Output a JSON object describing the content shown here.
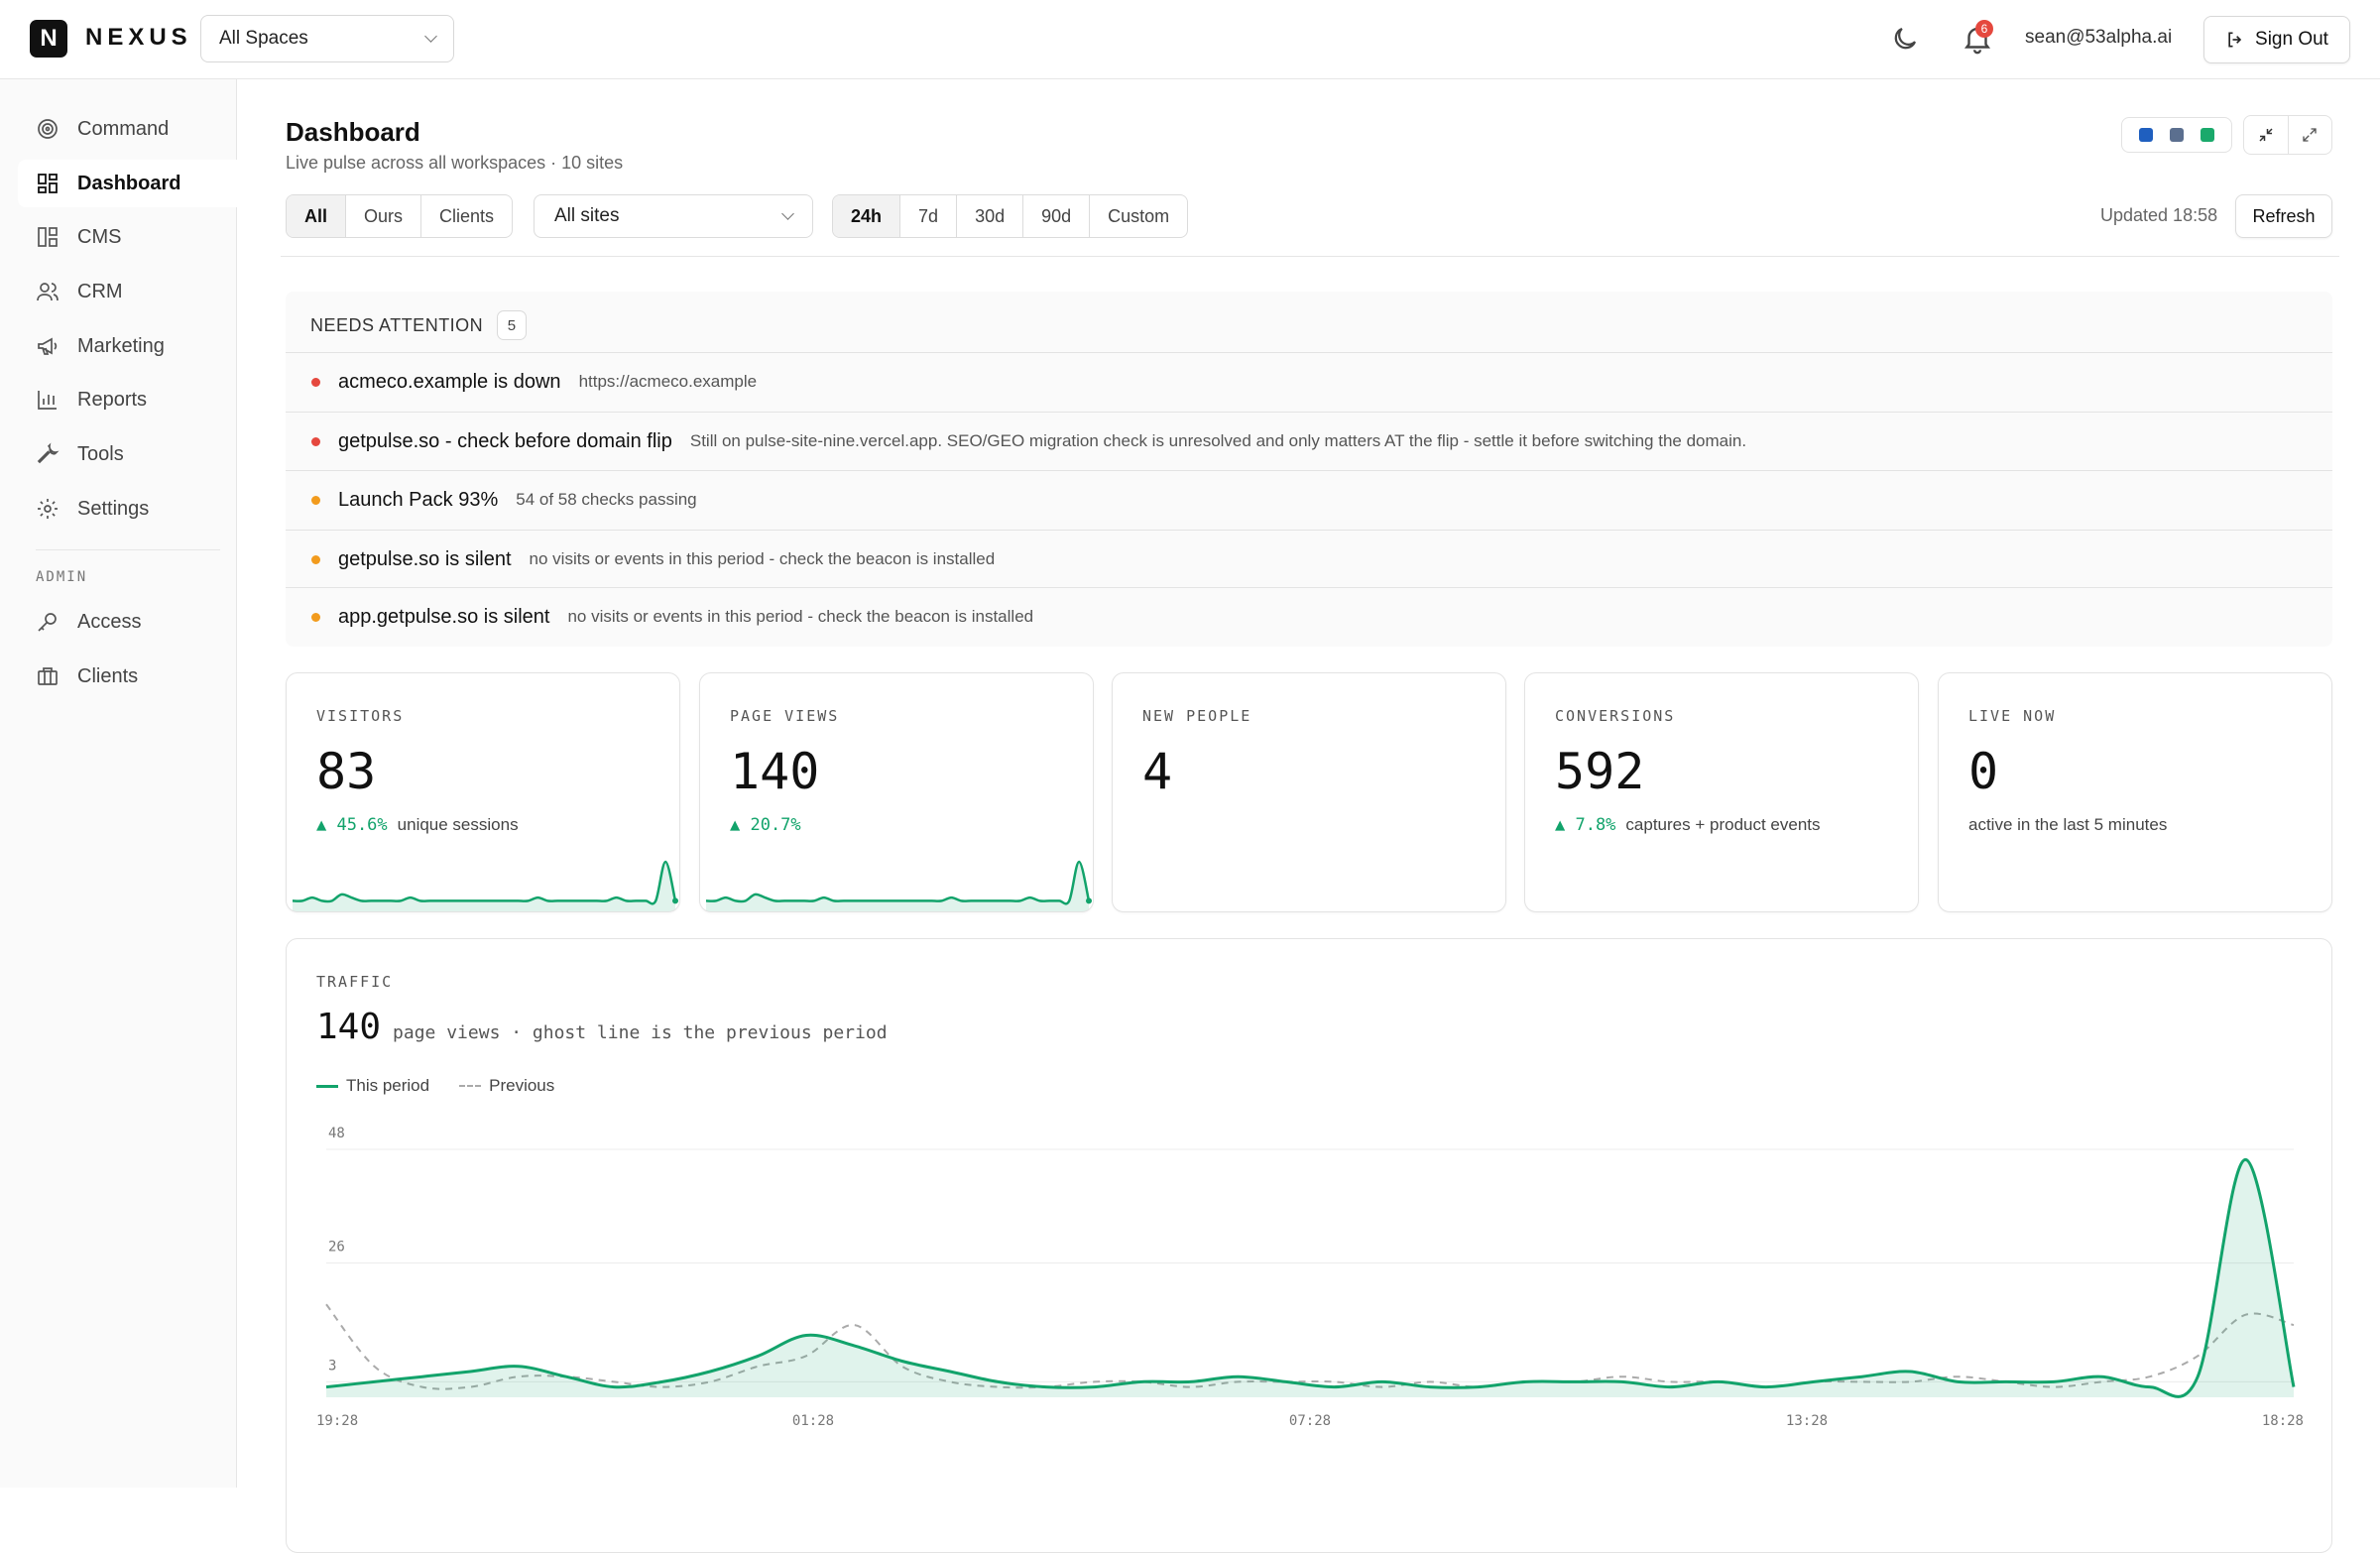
{
  "app": {
    "logo_letter": "N",
    "name": "NEXUS"
  },
  "header": {
    "space_select": "All Spaces",
    "notifications_count": "6",
    "user_email": "sean@53alpha.ai",
    "sign_out": "Sign Out"
  },
  "sidebar": {
    "items": [
      {
        "label": "Command",
        "icon": "target-icon"
      },
      {
        "label": "Dashboard",
        "icon": "grid-icon",
        "active": true
      },
      {
        "label": "CMS",
        "icon": "layout-icon"
      },
      {
        "label": "CRM",
        "icon": "users-icon"
      },
      {
        "label": "Marketing",
        "icon": "megaphone-icon"
      },
      {
        "label": "Reports",
        "icon": "bar-chart-icon"
      },
      {
        "label": "Tools",
        "icon": "wrench-icon"
      },
      {
        "label": "Settings",
        "icon": "gear-icon"
      }
    ],
    "admin_label": "ADMIN",
    "admin_items": [
      {
        "label": "Access",
        "icon": "key-icon"
      },
      {
        "label": "Clients",
        "icon": "briefcase-icon"
      }
    ]
  },
  "page": {
    "title": "Dashboard",
    "subtitle": "Live pulse across all workspaces · 10 sites",
    "swatch_colors": [
      "#1f5fbf",
      "#5b6f8f",
      "#1aa96b"
    ]
  },
  "filters": {
    "scope": [
      "All",
      "Ours",
      "Clients"
    ],
    "scope_selected": "All",
    "site_select": "All sites",
    "ranges": [
      "24h",
      "7d",
      "30d",
      "90d",
      "Custom"
    ],
    "range_selected": "24h",
    "updated": "Updated 18:58",
    "refresh": "Refresh"
  },
  "attention": {
    "title": "NEEDS ATTENTION",
    "count": "5",
    "items": [
      {
        "title": "acmeco.example is down",
        "desc": "https://acmeco.example",
        "severity_color": "#e5483e"
      },
      {
        "title": "getpulse.so - check before domain flip",
        "desc": "Still on pulse-site-nine.vercel.app. SEO/GEO migration check is unresolved and only matters AT the flip - settle it before switching the domain.",
        "severity_color": "#e5483e"
      },
      {
        "title": "Launch Pack 93%",
        "desc": "54 of 58 checks passing",
        "severity_color": "#f29b1d"
      },
      {
        "title": "getpulse.so is silent",
        "desc": "no visits or events in this period - check the beacon is installed",
        "severity_color": "#f29b1d"
      },
      {
        "title": "app.getpulse.so is silent",
        "desc": "no visits or events in this period - check the beacon is installed",
        "severity_color": "#f29b1d"
      }
    ]
  },
  "stats": [
    {
      "label": "VISITORS",
      "value": "83",
      "delta": "▲ 45.6%",
      "caption": "unique sessions",
      "spark": [
        2,
        2,
        3,
        2,
        2,
        4,
        3,
        2,
        2,
        2,
        2,
        2,
        3,
        2,
        2,
        2,
        2,
        2,
        2,
        2,
        2,
        2,
        2,
        2,
        2,
        3,
        2,
        2,
        2,
        2,
        2,
        2,
        2,
        3,
        2,
        2,
        2,
        2,
        14,
        2
      ]
    },
    {
      "label": "PAGE VIEWS",
      "value": "140",
      "delta": "▲ 20.7%",
      "caption": "",
      "spark": [
        2,
        2,
        3,
        2,
        2,
        4,
        3,
        2,
        2,
        2,
        2,
        2,
        3,
        2,
        2,
        2,
        2,
        2,
        2,
        2,
        2,
        2,
        2,
        2,
        2,
        3,
        2,
        2,
        2,
        2,
        2,
        2,
        2,
        3,
        2,
        2,
        2,
        2,
        14,
        2
      ]
    },
    {
      "label": "NEW PEOPLE",
      "value": "4",
      "delta": "",
      "caption": ""
    },
    {
      "label": "CONVERSIONS",
      "value": "592",
      "delta": "▲ 7.8%",
      "caption": "captures + product events"
    },
    {
      "label": "LIVE NOW",
      "value": "0",
      "delta": "",
      "caption": "active in the last 5 minutes"
    }
  ],
  "traffic": {
    "label": "TRAFFIC",
    "value": "140",
    "caption": "page views · ghost line is the previous period",
    "legend_current": "This period",
    "legend_previous": "Previous"
  },
  "chart_data": {
    "type": "area",
    "yticks": [
      48,
      26,
      3
    ],
    "ylim": [
      0,
      48
    ],
    "x_tick_labels": [
      "19:28",
      "01:28",
      "07:28",
      "13:28",
      "18:28"
    ],
    "series": [
      {
        "name": "This period",
        "color": "#12a36b",
        "values": [
          2,
          3,
          4,
          5,
          6,
          4,
          2,
          3,
          5,
          8,
          12,
          10,
          7,
          5,
          3,
          2,
          2,
          3,
          3,
          4,
          3,
          2,
          3,
          2,
          2,
          3,
          3,
          3,
          2,
          3,
          2,
          3,
          4,
          5,
          3,
          3,
          3,
          4,
          2,
          4,
          46,
          2
        ]
      },
      {
        "name": "Previous",
        "color": "#aaaaaa",
        "values": [
          18,
          6,
          2,
          2,
          4,
          4,
          3,
          2,
          3,
          6,
          8,
          14,
          6,
          3,
          2,
          2,
          3,
          3,
          2,
          3,
          3,
          3,
          2,
          3,
          2,
          3,
          3,
          4,
          3,
          3,
          2,
          3,
          3,
          3,
          4,
          3,
          2,
          3,
          4,
          8,
          16,
          14
        ]
      }
    ]
  }
}
